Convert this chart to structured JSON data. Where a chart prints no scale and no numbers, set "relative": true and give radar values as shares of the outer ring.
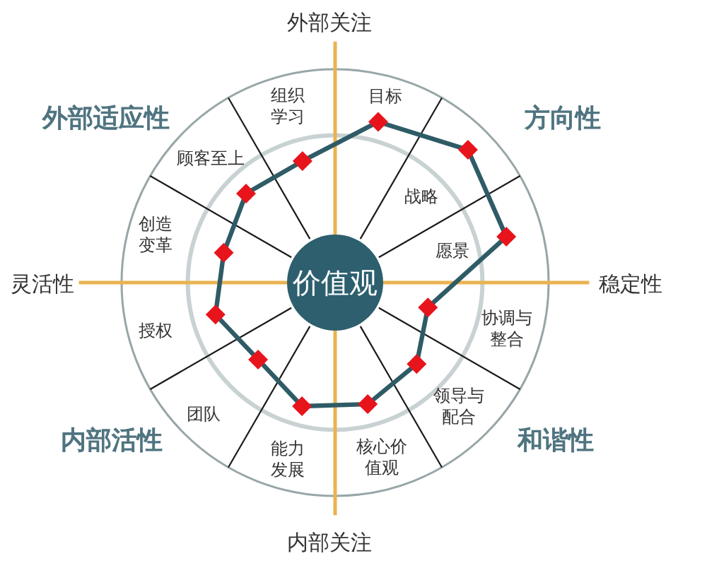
{
  "chart_data": {
    "type": "radar",
    "relative": true,
    "grid": true,
    "marker": "diamond",
    "categories": [
      "目标",
      "战略",
      "愿景",
      "协调与整合",
      "领导与配合",
      "核心价值观",
      "能力发展",
      "团队",
      "授权",
      "创造变革",
      "顾客至上",
      "组织学习"
    ],
    "series": [
      {
        "color": "#2e5b66",
        "colors": [
          "#e8141c",
          "#e8141c",
          "#e8141c",
          "#e8141c",
          "#e8141c",
          "#e8141c",
          "#e8141c",
          "#e8141c",
          "#e8141c",
          "#e8141c",
          "#e8141c",
          "#e8141c"
        ],
        "values": [
          0.78,
          0.88,
          0.83,
          0.45,
          0.54,
          0.59,
          0.6,
          0.51,
          0.58,
          0.54,
          0.59,
          0.59
        ]
      }
    ],
    "annotations": [
      "外部关注",
      "外部适应性",
      "方向性",
      "灵活性",
      "价值观",
      "稳定性",
      "内部活性",
      "和谐性",
      "内部关注"
    ]
  }
}
